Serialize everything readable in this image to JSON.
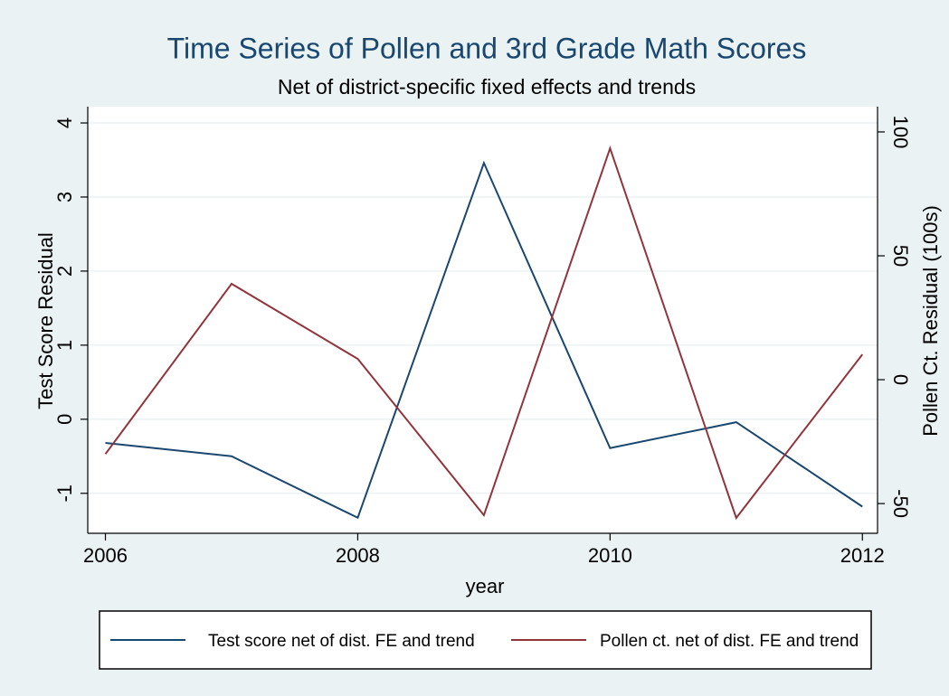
{
  "chart_data": {
    "type": "line",
    "title": "Time Series of Pollen and 3rd Grade Math Scores",
    "subtitle": "Net of district-specific fixed effects and trends",
    "x_label": "year",
    "y_label": "Test Score Residual",
    "y2_label": "Pollen Ct. Residual (100s)",
    "x": [
      2006,
      2007,
      2008,
      2009,
      2010,
      2011,
      2012
    ],
    "xlim": [
      2005.86,
      2012.12
    ],
    "xticks": [
      2006,
      2008,
      2010,
      2012
    ],
    "ylim": [
      -1.54,
      4.22
    ],
    "yticks": [
      -1,
      0,
      1,
      2,
      3,
      4
    ],
    "y2lim": [
      -62,
      110.2
    ],
    "y2ticks": [
      -50,
      0,
      50,
      100
    ],
    "grid": true,
    "legend": "bottom",
    "series": [
      {
        "name": "Test score net of dist. FE and trend",
        "color": "#1a476f",
        "values": [
          -0.32,
          -0.5,
          -1.33,
          3.46,
          -0.39,
          -0.04,
          -1.18
        ]
      },
      {
        "name": "Pollen ct. net of dist. FE and trend",
        "color": "#90353b",
        "axis": "y2",
        "values": [
          -30,
          38.7,
          8.4,
          -54.7,
          93.4,
          -55.8,
          10.2
        ]
      }
    ]
  }
}
